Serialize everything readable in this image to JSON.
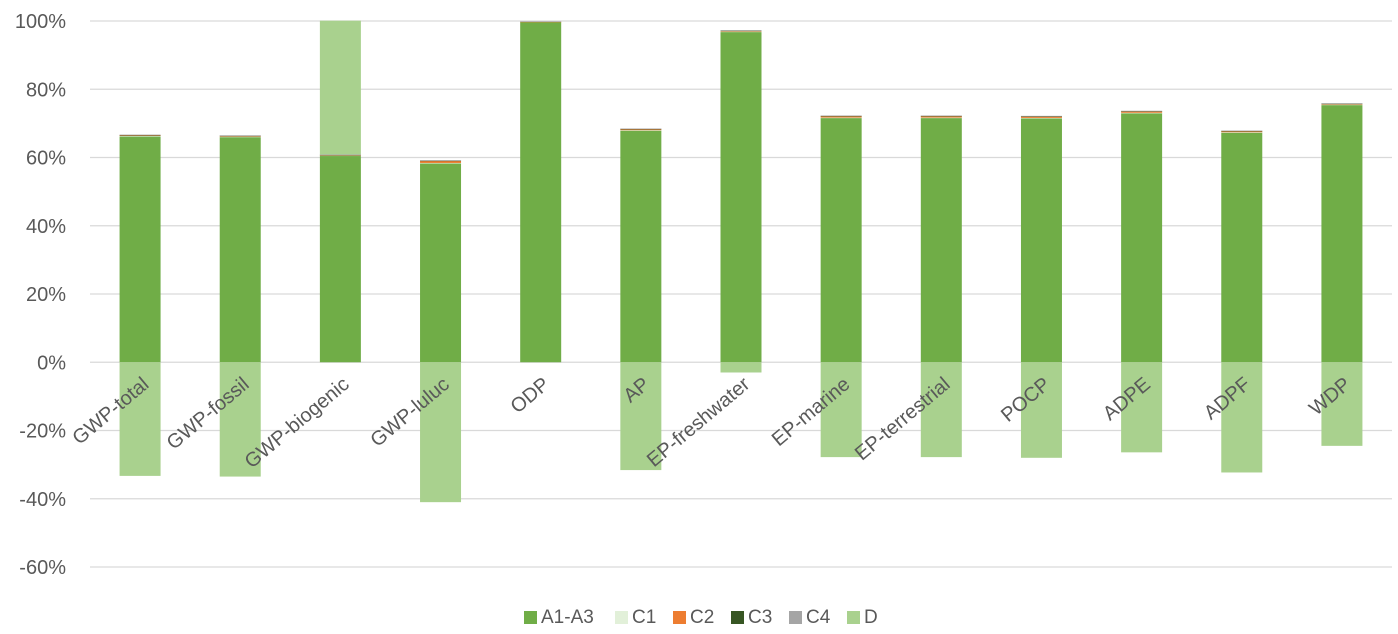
{
  "chart_data": {
    "type": "bar",
    "stacked": true,
    "title": "",
    "xlabel": "",
    "ylabel": "",
    "ylim": [
      -60,
      100
    ],
    "yticks": [
      100,
      80,
      60,
      40,
      20,
      0,
      -20,
      -40,
      -60
    ],
    "ytick_format": "{v}%",
    "grid": true,
    "legend_position": "bottom",
    "categories": [
      "GWP-total",
      "GWP-fossil",
      "GWP-biogenic",
      "GWP-luluc",
      "ODP",
      "AP",
      "EP-freshwater",
      "EP-marine",
      "EP-terrestrial",
      "POCP",
      "ADPE",
      "ADPF",
      "WDP"
    ],
    "series": [
      {
        "name": "A1-A3",
        "color": "#70ad47",
        "values": [
          66.2,
          66.0,
          60.5,
          58.3,
          99.7,
          67.9,
          96.8,
          71.6,
          71.6,
          71.5,
          73.0,
          67.3,
          75.4
        ]
      },
      {
        "name": "C1",
        "color": "#e2f0d9",
        "values": [
          0.1,
          0.1,
          0.1,
          0.1,
          0.0,
          0.1,
          0.1,
          0.1,
          0.1,
          0.1,
          0.1,
          0.1,
          0.1
        ]
      },
      {
        "name": "C2",
        "color": "#ed7d31",
        "values": [
          0.2,
          0.2,
          0.1,
          0.6,
          0.1,
          0.3,
          0.2,
          0.4,
          0.4,
          0.4,
          0.4,
          0.3,
          0.2
        ]
      },
      {
        "name": "C3",
        "color": "#375623",
        "values": [
          0.1,
          0.1,
          0.1,
          0.1,
          0.0,
          0.1,
          0.1,
          0.1,
          0.1,
          0.1,
          0.1,
          0.1,
          0.1
        ]
      },
      {
        "name": "C4",
        "color": "#a5a5a5",
        "values": [
          0.1,
          0.1,
          0.1,
          0.1,
          0.1,
          0.1,
          0.1,
          0.1,
          0.1,
          0.1,
          0.1,
          0.1,
          0.1
        ]
      },
      {
        "name": "D",
        "color": "#a9d18e",
        "values": [
          -33.3,
          -33.5,
          39.2,
          -41.0,
          0.0,
          -31.6,
          -3.0,
          -27.8,
          -27.8,
          -28.0,
          -26.4,
          -32.3,
          -24.5
        ]
      }
    ]
  }
}
